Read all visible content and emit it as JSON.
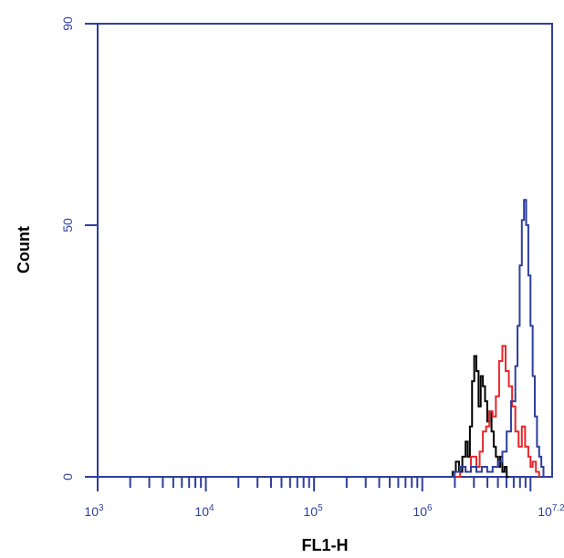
{
  "chart_data": {
    "type": "line",
    "title": "",
    "xlabel": "FL1-H",
    "ylabel": "Count",
    "xscale": "log",
    "xlim": [
      3,
      7.2
    ],
    "ylim": [
      0,
      90
    ],
    "grid": false,
    "legend": "none",
    "x_tick_labels": [
      {
        "base": "10",
        "exp": "3"
      },
      {
        "base": "10",
        "exp": "4"
      },
      {
        "base": "10",
        "exp": "5"
      },
      {
        "base": "10",
        "exp": "6"
      },
      {
        "base": "10",
        "exp": "7.2"
      }
    ],
    "y_tick_labels": [
      "0",
      "50",
      "90"
    ],
    "y_tick_values": [
      0,
      50,
      90
    ],
    "x_tick_values": [
      3,
      4,
      5,
      6,
      7.2
    ],
    "series": [
      {
        "color": "#000000",
        "x": [
          6.25,
          6.28,
          6.31,
          6.34,
          6.37,
          6.4,
          6.42,
          6.44,
          6.46,
          6.48,
          6.5,
          6.52,
          6.54,
          6.56,
          6.58,
          6.6,
          6.62,
          6.64,
          6.66,
          6.68,
          6.7,
          6.72,
          6.74,
          6.76,
          6.78,
          6.8
        ],
        "y": [
          0,
          1,
          3,
          1,
          4,
          7,
          4,
          10,
          19,
          24,
          21,
          14,
          20,
          18,
          15,
          11,
          13,
          9,
          6,
          4,
          2,
          4,
          1,
          2,
          0,
          0
        ]
      },
      {
        "color": "#e8262a",
        "x": [
          6.3,
          6.35,
          6.4,
          6.45,
          6.5,
          6.53,
          6.56,
          6.59,
          6.62,
          6.65,
          6.68,
          6.71,
          6.74,
          6.77,
          6.8,
          6.83,
          6.86,
          6.89,
          6.92,
          6.95,
          6.98,
          7.0,
          7.02,
          7.05,
          7.08
        ],
        "y": [
          0,
          2,
          1,
          4,
          2,
          5,
          9,
          10,
          13,
          12,
          16,
          23,
          26,
          21,
          18,
          14,
          9,
          6,
          10,
          6,
          4,
          2,
          3,
          1,
          0
        ]
      },
      {
        "color": "#2e3f9e",
        "x": [
          6.25,
          6.3,
          6.35,
          6.4,
          6.45,
          6.5,
          6.55,
          6.6,
          6.65,
          6.7,
          6.74,
          6.78,
          6.82,
          6.86,
          6.88,
          6.9,
          6.92,
          6.94,
          6.96,
          6.98,
          7.0,
          7.02,
          7.04,
          7.06,
          7.08,
          7.1,
          7.12
        ],
        "y": [
          0,
          1,
          2,
          1,
          2,
          1,
          2,
          1,
          2,
          3,
          5,
          9,
          15,
          22,
          30,
          42,
          51,
          55,
          50,
          40,
          30,
          20,
          12,
          6,
          4,
          2,
          0
        ]
      }
    ]
  }
}
